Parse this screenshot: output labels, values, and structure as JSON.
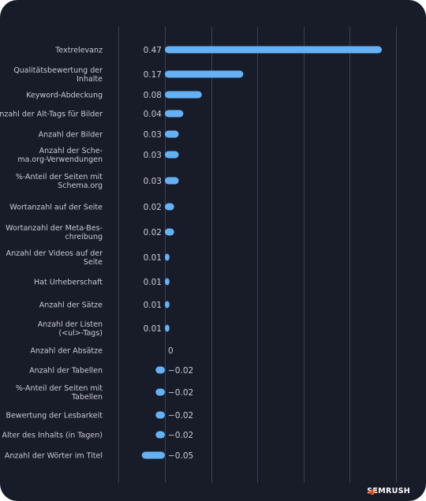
{
  "chart_data": {
    "type": "bar",
    "orientation": "horizontal",
    "categories": [
      [
        "Textrelevanz"
      ],
      [
        "Qualitätsbewertung der",
        "Inhalte"
      ],
      [
        "Keyword-Abdeckung"
      ],
      [
        "Anzahl der Alt-Tags für Bilder"
      ],
      [
        "Anzahl der Bilder"
      ],
      [
        "Anzahl der Sche-",
        "ma.org-Verwendungen"
      ],
      [
        "%-Anteil der Seiten mit",
        "Schema.org"
      ],
      [
        "Wortanzahl auf der Seite"
      ],
      [
        "Wortanzahl der Meta-Bes-",
        "chreibung"
      ],
      [
        "Anzahl der Videos auf der",
        "Seite"
      ],
      [
        "Hat Urheberschaft"
      ],
      [
        "Anzahl der Sätze"
      ],
      [
        "Anzahl der Listen",
        "(<ul>-Tags)"
      ],
      [
        "Anzahl der Absätze"
      ],
      [
        "Anzahl der Tabellen"
      ],
      [
        "%-Anteil der Seiten mit",
        "Tabellen"
      ],
      [
        "Bewertung der Lesbarkeit"
      ],
      [
        "Alter des Inhalts (in Tagen)"
      ],
      [
        "Anzahl der Wörter im Titel"
      ]
    ],
    "values": [
      0.47,
      0.17,
      0.08,
      0.04,
      0.03,
      0.03,
      0.03,
      0.02,
      0.02,
      0.01,
      0.01,
      0.01,
      0.01,
      0,
      -0.02,
      -0.02,
      -0.02,
      -0.02,
      -0.05
    ],
    "value_labels": [
      "0.47",
      "0.17",
      "0.08",
      "0.04",
      "0.03",
      "0.03",
      "0.03",
      "0.02",
      "0.02",
      "0.01",
      "0.01",
      "0.01",
      "0.01",
      "0",
      "−0.02",
      "−0.02",
      "−0.02",
      "−0.02",
      "−0.05"
    ],
    "xlim": [
      -0.1,
      0.5
    ],
    "grid": true,
    "title": "",
    "xlabel": "",
    "ylabel": ""
  },
  "colors": {
    "background": "#181b28",
    "bar": "#64b2f5",
    "grid": "#3a4159",
    "text": "#c9ccd6",
    "brand_icon": "#ff642d"
  },
  "brand": {
    "name": "SEMRUSH",
    "icon": "semrush-fire-icon"
  }
}
